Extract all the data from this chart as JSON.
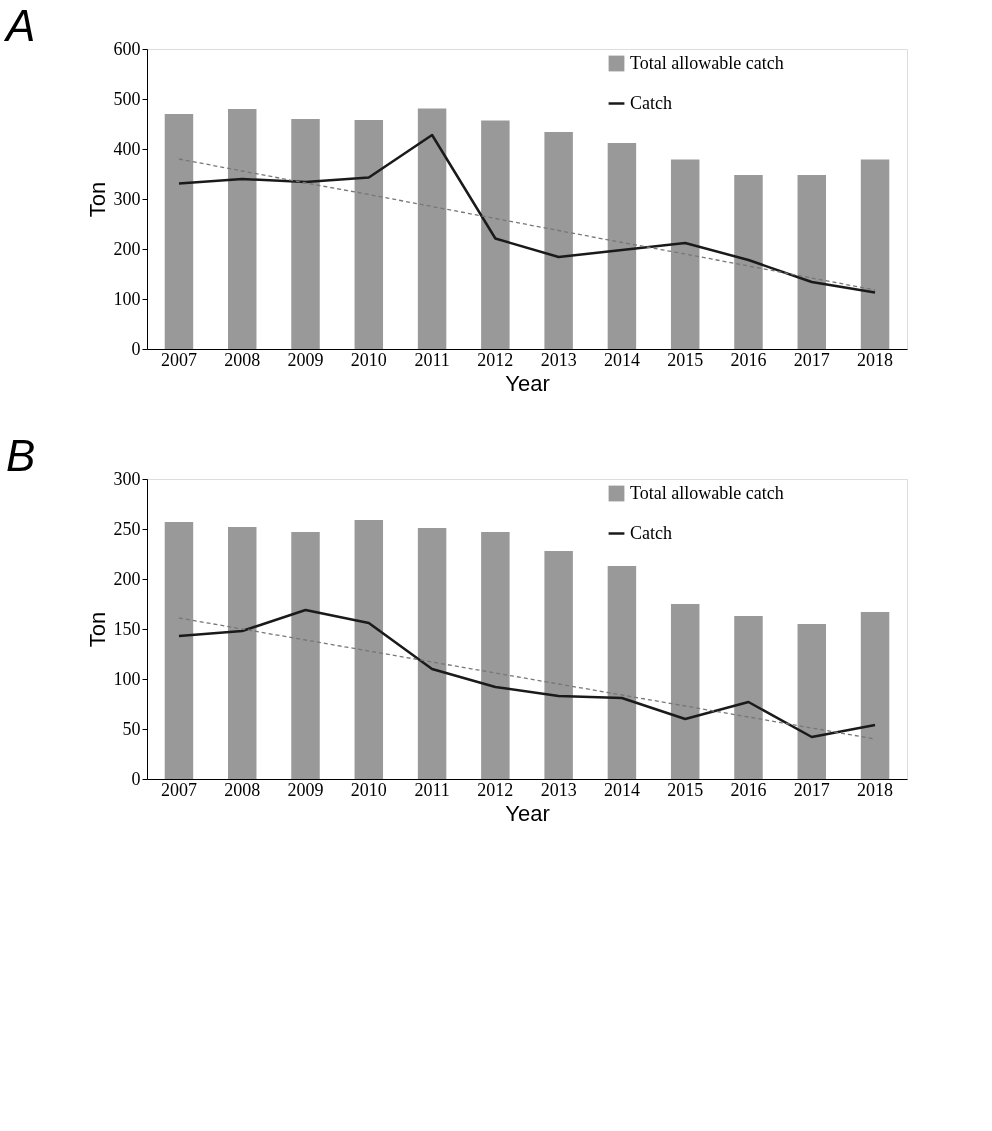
{
  "chart_data": [
    {
      "type": "bar",
      "title": "A",
      "xlabel": "Year",
      "ylabel": "Ton",
      "categories": [
        "2007",
        "2008",
        "2009",
        "2010",
        "2011",
        "2012",
        "2013",
        "2014",
        "2015",
        "2016",
        "2017",
        "2018"
      ],
      "ylim": [
        0,
        600
      ],
      "yticks": [
        0,
        100,
        200,
        300,
        400,
        500,
        600
      ],
      "grid": false,
      "legend": "top right",
      "series": [
        {
          "name": "Total allowable catch",
          "color": "#999999",
          "values": [
            470,
            480,
            460,
            458,
            481,
            457,
            434,
            412,
            379,
            348,
            348,
            379
          ]
        },
        {
          "name": "Catch",
          "type": "line",
          "color": "#1a1a1a",
          "line_style": "solid",
          "values": [
            331,
            340,
            334,
            343,
            428,
            221,
            184,
            198,
            212,
            178,
            134,
            113
          ]
        },
        {
          "type": "line",
          "color": "#777777",
          "line_style": "dashed",
          "values": [
            380,
            356,
            332,
            309,
            285,
            261,
            237,
            213,
            190,
            166,
            142,
            118
          ]
        }
      ]
    },
    {
      "type": "bar",
      "title": "B",
      "xlabel": "Year",
      "ylabel": "Ton",
      "categories": [
        "2007",
        "2008",
        "2009",
        "2010",
        "2011",
        "2012",
        "2013",
        "2014",
        "2015",
        "2016",
        "2017",
        "2018"
      ],
      "ylim": [
        0,
        300
      ],
      "yticks": [
        0,
        50,
        100,
        150,
        200,
        250,
        300
      ],
      "grid": false,
      "legend": "top right",
      "series": [
        {
          "name": "Total allowable catch",
          "color": "#999999",
          "values": [
            257,
            252,
            247,
            259,
            251,
            247,
            228,
            213,
            175,
            163,
            155,
            167
          ]
        },
        {
          "name": "Catch",
          "type": "line",
          "color": "#1a1a1a",
          "line_style": "solid",
          "values": [
            143,
            148,
            169,
            156,
            110,
            92,
            83,
            81,
            60,
            77,
            42,
            54
          ]
        },
        {
          "type": "line",
          "color": "#777777",
          "line_style": "dashed",
          "values": [
            161,
            150,
            139,
            128,
            117,
            106,
            95,
            84,
            73,
            62,
            51,
            40
          ]
        }
      ]
    }
  ]
}
